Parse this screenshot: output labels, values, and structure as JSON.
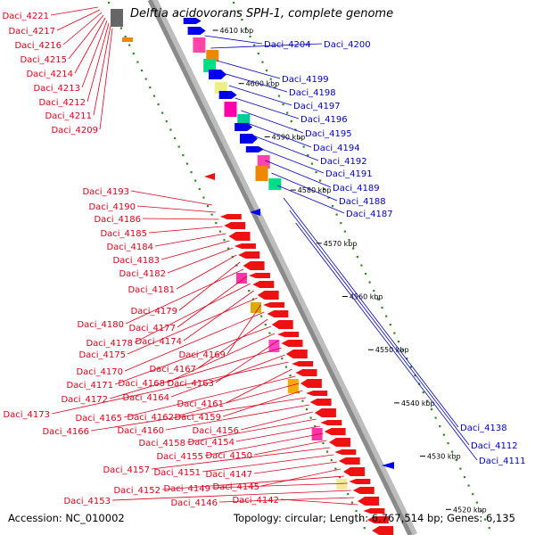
{
  "title": "Delftia acidovorans SPH-1, complete genome",
  "footer": {
    "accession": "Accession: NC_010002",
    "topology": "Topology: circular; Length: 6,767,514 bp; Genes: 6,135"
  },
  "colors": {
    "reverse_label": "#e0001a",
    "forward_label": "#0000c8",
    "reverse_feature": "#ee1111",
    "forward_feature": "#0000ee",
    "backbone": "#8a8a8a",
    "dots": "#2e8b22"
  },
  "ticks": [
    {
      "label": "4610 kbp"
    },
    {
      "label": "4600 kbp"
    },
    {
      "label": "4590 kbp"
    },
    {
      "label": "4580 kbp"
    },
    {
      "label": "4570 kbp"
    },
    {
      "label": "4560 kbp"
    },
    {
      "label": "4550 kbp"
    },
    {
      "label": "4540 kbp"
    },
    {
      "label": "4530 kbp"
    },
    {
      "label": "4520 kbp"
    }
  ],
  "genes_forward": [
    "Daci_4204",
    "Daci_4200",
    "Daci_4199",
    "Daci_4198",
    "Daci_4197",
    "Daci_4196",
    "Daci_4195",
    "Daci_4194",
    "Daci_4192",
    "Daci_4191",
    "Daci_4189",
    "Daci_4188",
    "Daci_4187",
    "Daci_4138",
    "Daci_4112",
    "Daci_4111"
  ],
  "genes_reverse_top": [
    "Daci_4221",
    "Daci_4217",
    "Daci_4216",
    "Daci_4215",
    "Daci_4214",
    "Daci_4213",
    "Daci_4212",
    "Daci_4211",
    "Daci_4209"
  ],
  "genes_reverse": [
    "Daci_4193",
    "Daci_4190",
    "Daci_4186",
    "Daci_4185",
    "Daci_4184",
    "Daci_4183",
    "Daci_4182",
    "Daci_4181",
    "Daci_4179",
    "Daci_4180",
    "Daci_4177",
    "Daci_4178",
    "Daci_4174",
    "Daci_4175",
    "Daci_4169",
    "Daci_4170",
    "Daci_4167",
    "Daci_4171",
    "Daci_4168",
    "Daci_4163",
    "Daci_4172",
    "Daci_4164",
    "Daci_4173",
    "Daci_4161",
    "Daci_4165",
    "Daci_4162",
    "Daci_4159",
    "Daci_4166",
    "Daci_4160",
    "Daci_4156",
    "Daci_4158",
    "Daci_4154",
    "Daci_4155",
    "Daci_4150",
    "Daci_4157",
    "Daci_4151",
    "Daci_4147",
    "Daci_4145",
    "Daci_4152",
    "Daci_4149",
    "Daci_4153",
    "Daci_4146",
    "Daci_4142"
  ]
}
